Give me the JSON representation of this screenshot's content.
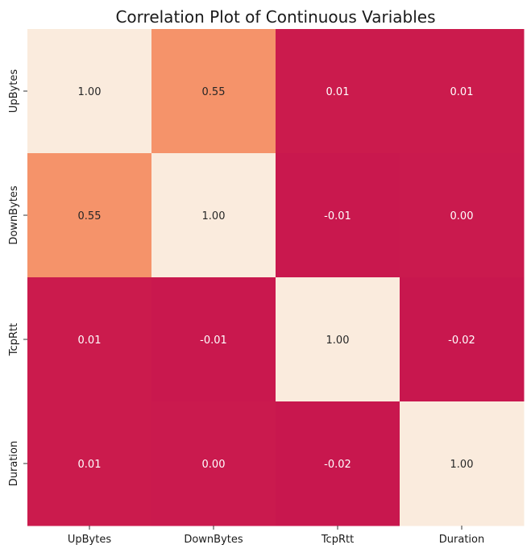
{
  "chart_data": {
    "type": "heatmap",
    "title": "Correlation Plot of Continuous Variables",
    "xlabel": "",
    "ylabel": "",
    "x_categories": [
      "UpBytes",
      "DownBytes",
      "TcpRtt",
      "Duration"
    ],
    "y_categories": [
      "UpBytes",
      "DownBytes",
      "TcpRtt",
      "Duration"
    ],
    "values": [
      [
        1.0,
        0.55,
        0.01,
        0.01
      ],
      [
        0.55,
        1.0,
        -0.01,
        0.0
      ],
      [
        0.01,
        -0.01,
        1.0,
        -0.02
      ],
      [
        0.01,
        0.0,
        -0.02,
        1.0
      ]
    ],
    "labels": [
      [
        "1.00",
        "0.55",
        "0.01",
        "0.01"
      ],
      [
        "0.55",
        "1.00",
        "-0.01",
        "0.00"
      ],
      [
        "0.01",
        "-0.01",
        "1.00",
        "-0.02"
      ],
      [
        "0.01",
        "0.00",
        "-0.02",
        "1.00"
      ]
    ],
    "value_range": [
      -0.02,
      1.0
    ],
    "colorbar": false,
    "colormap": "rocket",
    "grid": false
  }
}
